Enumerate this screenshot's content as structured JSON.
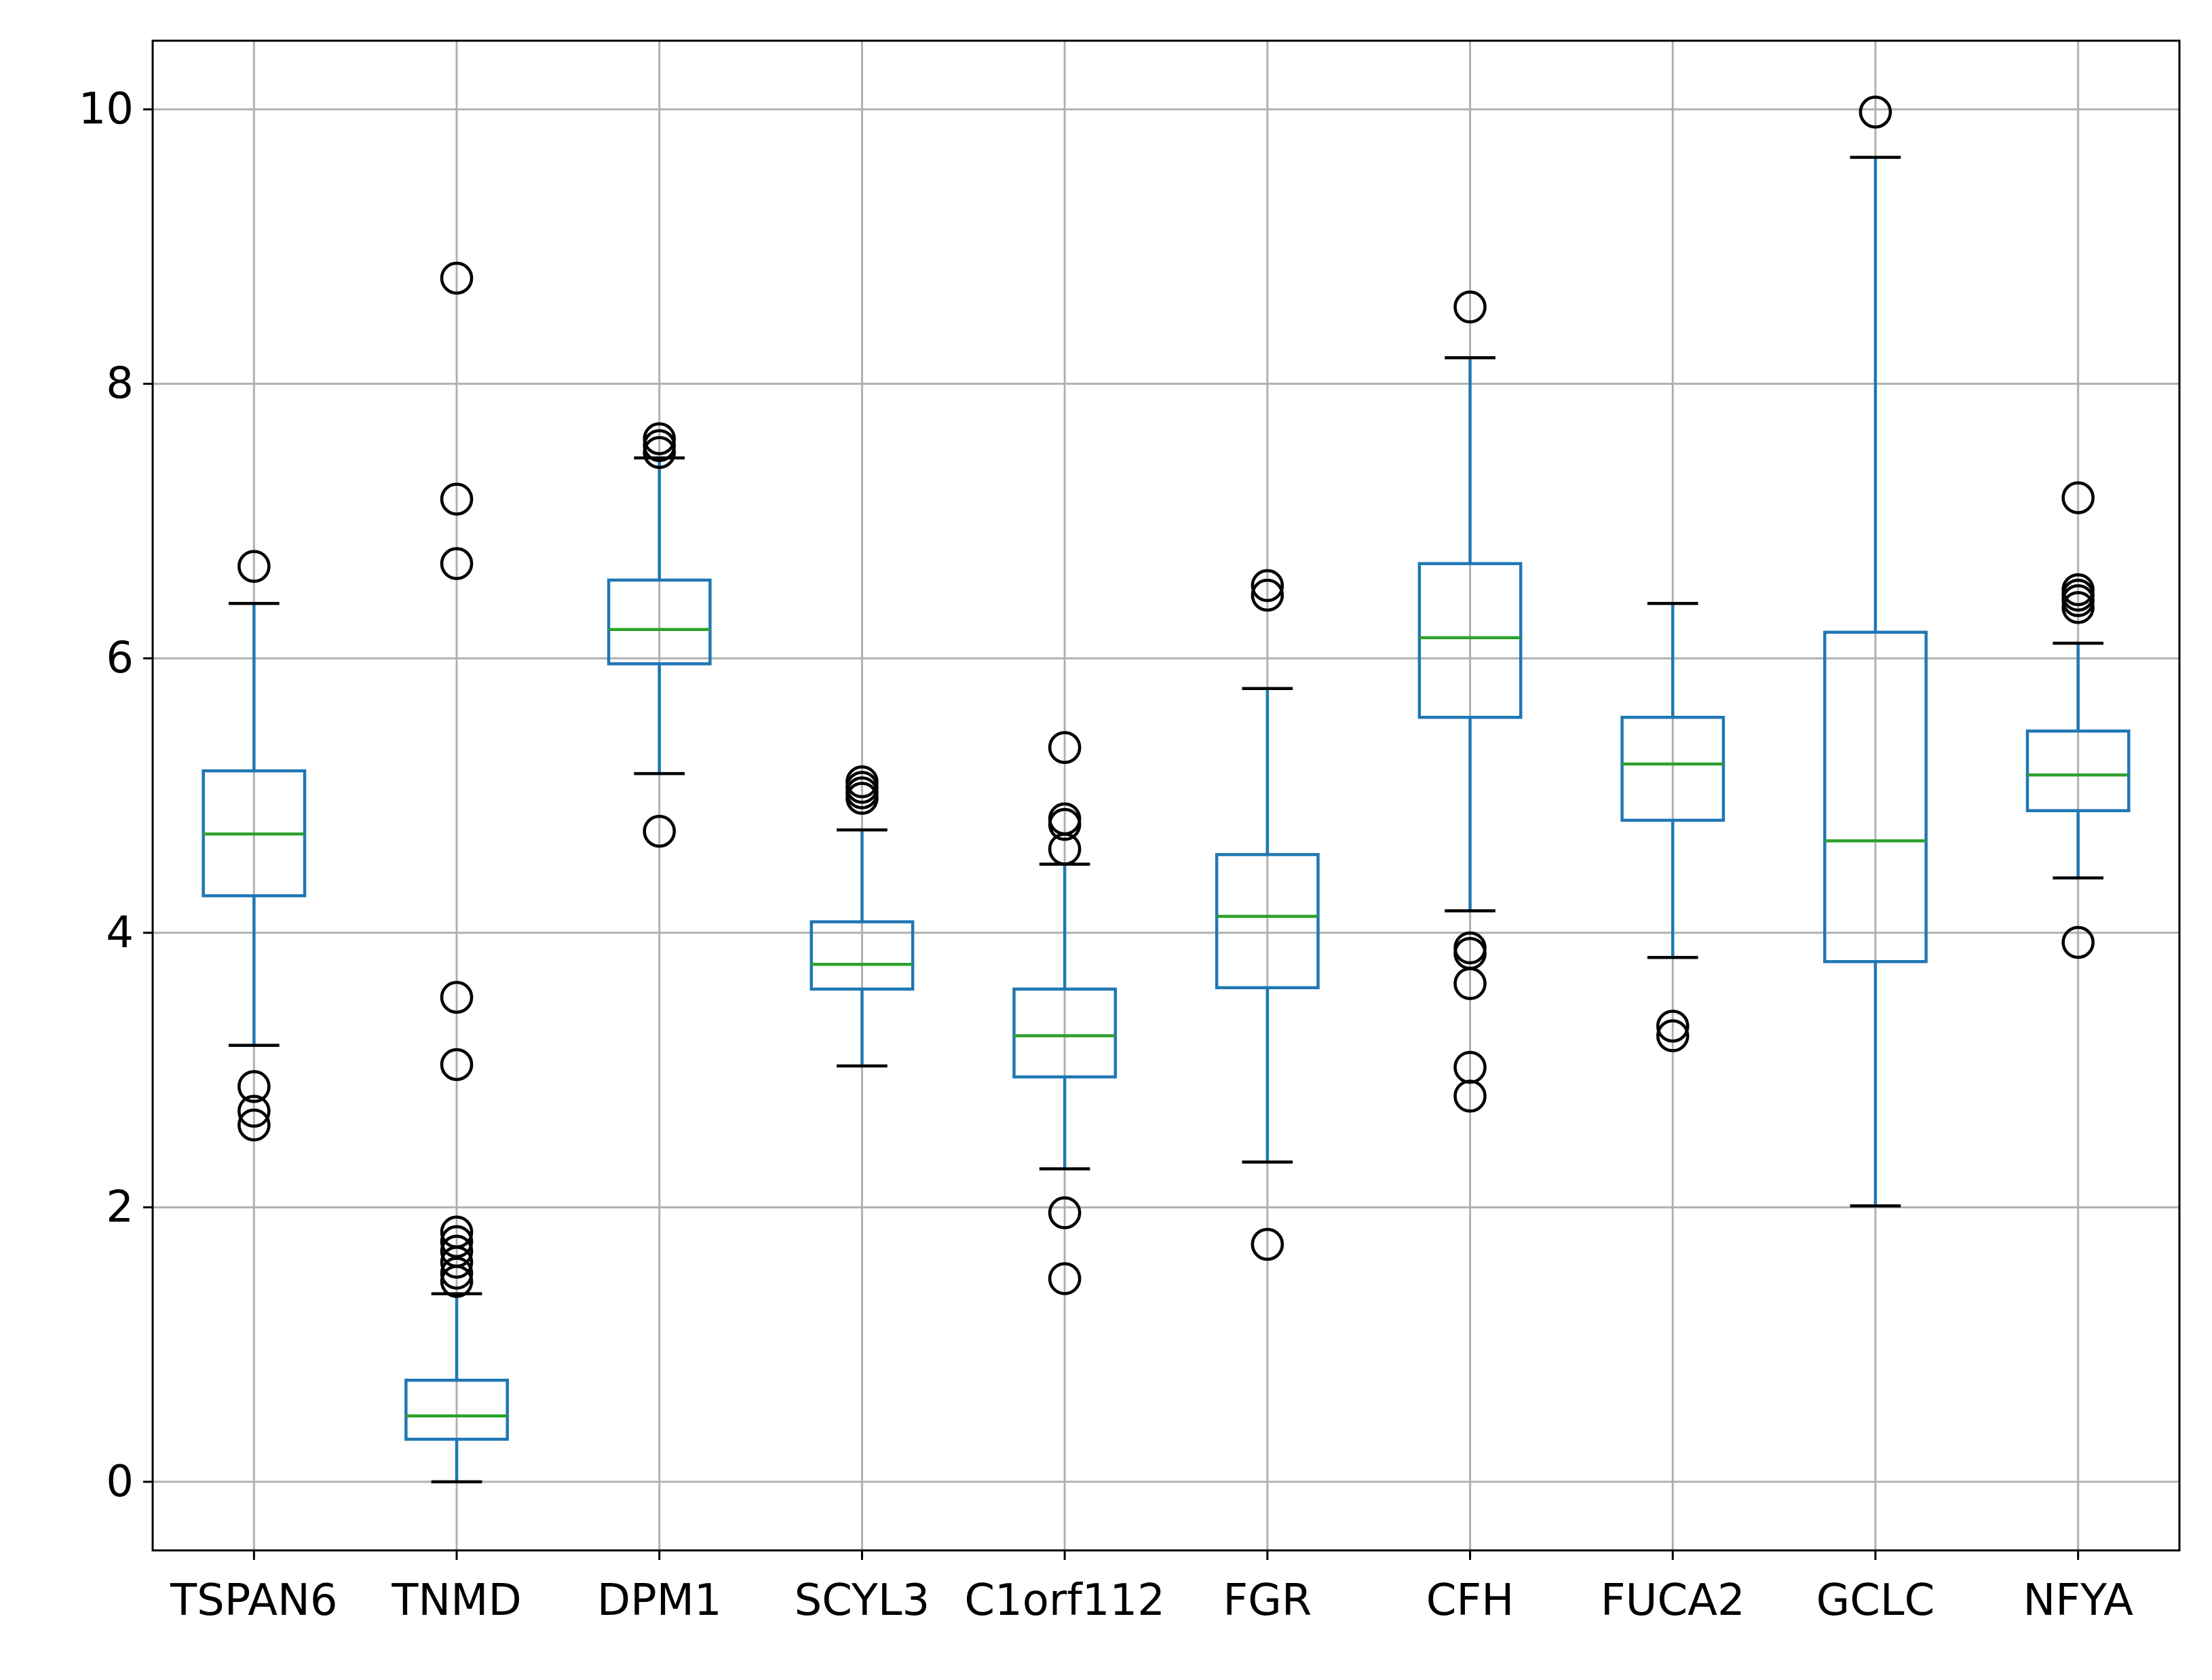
{
  "chart_data": {
    "type": "box",
    "title": "",
    "xlabel": "",
    "ylabel": "",
    "ylim": [
      -0.5,
      10.5
    ],
    "yticks": [
      0,
      2,
      4,
      6,
      8,
      10
    ],
    "grid": true,
    "legend": "none",
    "categories": [
      "TSPAN6",
      "TNMD",
      "DPM1",
      "SCYL3",
      "C1orf112",
      "FGR",
      "CFH",
      "FUCA2",
      "GCLC",
      "NFYA"
    ],
    "boxes": [
      {
        "category": "TSPAN6",
        "whisker_low": 3.18,
        "q1": 4.27,
        "median": 4.72,
        "q3": 5.18,
        "whisker_high": 6.4,
        "outliers": [
          6.67,
          2.88,
          2.7,
          2.6
        ]
      },
      {
        "category": "TNMD",
        "whisker_low": 0.0,
        "q1": 0.31,
        "median": 0.48,
        "q3": 0.74,
        "whisker_high": 1.37,
        "outliers": [
          8.77,
          7.16,
          6.69,
          3.53,
          3.04,
          1.82,
          1.75,
          1.68,
          1.6,
          1.52,
          1.46
        ]
      },
      {
        "category": "DPM1",
        "whisker_low": 5.16,
        "q1": 5.96,
        "median": 6.21,
        "q3": 6.57,
        "whisker_high": 7.46,
        "outliers": [
          7.6,
          7.55,
          7.5,
          4.74
        ]
      },
      {
        "category": "SCYL3",
        "whisker_low": 3.03,
        "q1": 3.59,
        "median": 3.77,
        "q3": 4.08,
        "whisker_high": 4.75,
        "outliers": [
          5.1,
          5.06,
          5.02,
          4.98
        ]
      },
      {
        "category": "C1orf112",
        "whisker_low": 2.28,
        "q1": 2.95,
        "median": 3.25,
        "q3": 3.59,
        "whisker_high": 4.5,
        "outliers": [
          5.35,
          4.83,
          4.79,
          4.61,
          1.96,
          1.48
        ]
      },
      {
        "category": "FGR",
        "whisker_low": 2.33,
        "q1": 3.6,
        "median": 4.12,
        "q3": 4.57,
        "whisker_high": 5.78,
        "outliers": [
          6.53,
          6.46,
          1.73
        ]
      },
      {
        "category": "CFH",
        "whisker_low": 4.16,
        "q1": 5.57,
        "median": 6.15,
        "q3": 6.69,
        "whisker_high": 8.19,
        "outliers": [
          8.56,
          3.89,
          3.85,
          3.63,
          3.02,
          2.81
        ]
      },
      {
        "category": "FUCA2",
        "whisker_low": 3.82,
        "q1": 4.82,
        "median": 5.23,
        "q3": 5.57,
        "whisker_high": 6.4,
        "outliers": [
          3.32,
          3.25
        ]
      },
      {
        "category": "GCLC",
        "whisker_low": 2.01,
        "q1": 3.79,
        "median": 4.67,
        "q3": 6.19,
        "whisker_high": 9.65,
        "outliers": [
          9.98
        ]
      },
      {
        "category": "NFYA",
        "whisker_low": 4.4,
        "q1": 4.89,
        "median": 5.15,
        "q3": 5.47,
        "whisker_high": 6.11,
        "outliers": [
          7.17,
          6.5,
          6.46,
          6.42,
          6.37,
          3.93
        ]
      }
    ],
    "colors": {
      "box": "#1f77b4",
      "median": "#2ca02c",
      "outlier": "#000000",
      "grid": "#b0b0b0",
      "axis": "#000000"
    }
  }
}
